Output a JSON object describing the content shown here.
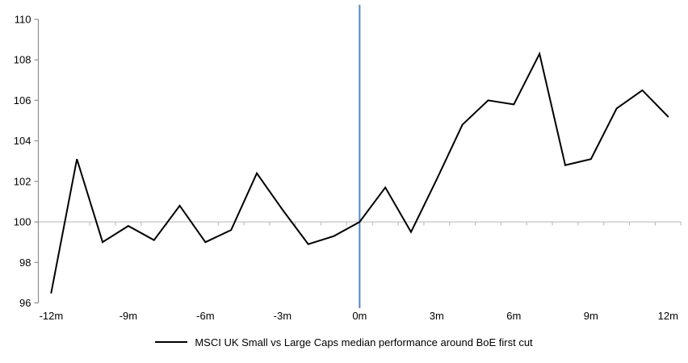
{
  "chart_data": {
    "type": "line",
    "title": "",
    "xlabel": "",
    "ylabel": "",
    "x": [
      -12,
      -11,
      -10,
      -9,
      -8,
      -7,
      -6,
      -5,
      -4,
      -3,
      -2,
      -1,
      0,
      1,
      2,
      3,
      4,
      5,
      6,
      7,
      8,
      9,
      10,
      11,
      12
    ],
    "series": [
      {
        "name": "MSCI UK Small vs Large Caps median performance around BoE first cut",
        "color": "#000000",
        "values": [
          96.5,
          103.1,
          99.0,
          99.8,
          99.1,
          100.8,
          99.0,
          99.6,
          102.4,
          100.6,
          98.9,
          99.3,
          100.0,
          101.7,
          99.5,
          102.1,
          104.8,
          106.0,
          105.8,
          108.3,
          102.8,
          103.1,
          105.6,
          106.5,
          105.2
        ]
      }
    ],
    "ylim": [
      96,
      110
    ],
    "y_ticks": [
      96,
      98,
      100,
      102,
      104,
      106,
      108,
      110
    ],
    "x_ticks": [
      {
        "x": -12,
        "label": "-12m"
      },
      {
        "x": -9,
        "label": "-9m"
      },
      {
        "x": -6,
        "label": "-6m"
      },
      {
        "x": -3,
        "label": "-3m"
      },
      {
        "x": 0,
        "label": "0m"
      },
      {
        "x": 3,
        "label": "3m"
      },
      {
        "x": 6,
        "label": "6m"
      },
      {
        "x": 9,
        "label": "9m"
      },
      {
        "x": 12,
        "label": "12m"
      }
    ],
    "reference_lines": {
      "vertical_at_x": 0,
      "vertical_color": "#4F87C5",
      "horizontal_at_y": 100,
      "horizontal_color": "#BFBFBF"
    },
    "colors": {
      "y_axis": "#8F8F8F",
      "x_axis": "#BFBFBF",
      "text": "#000000"
    },
    "grid": "off",
    "legend_position": "bottom"
  }
}
